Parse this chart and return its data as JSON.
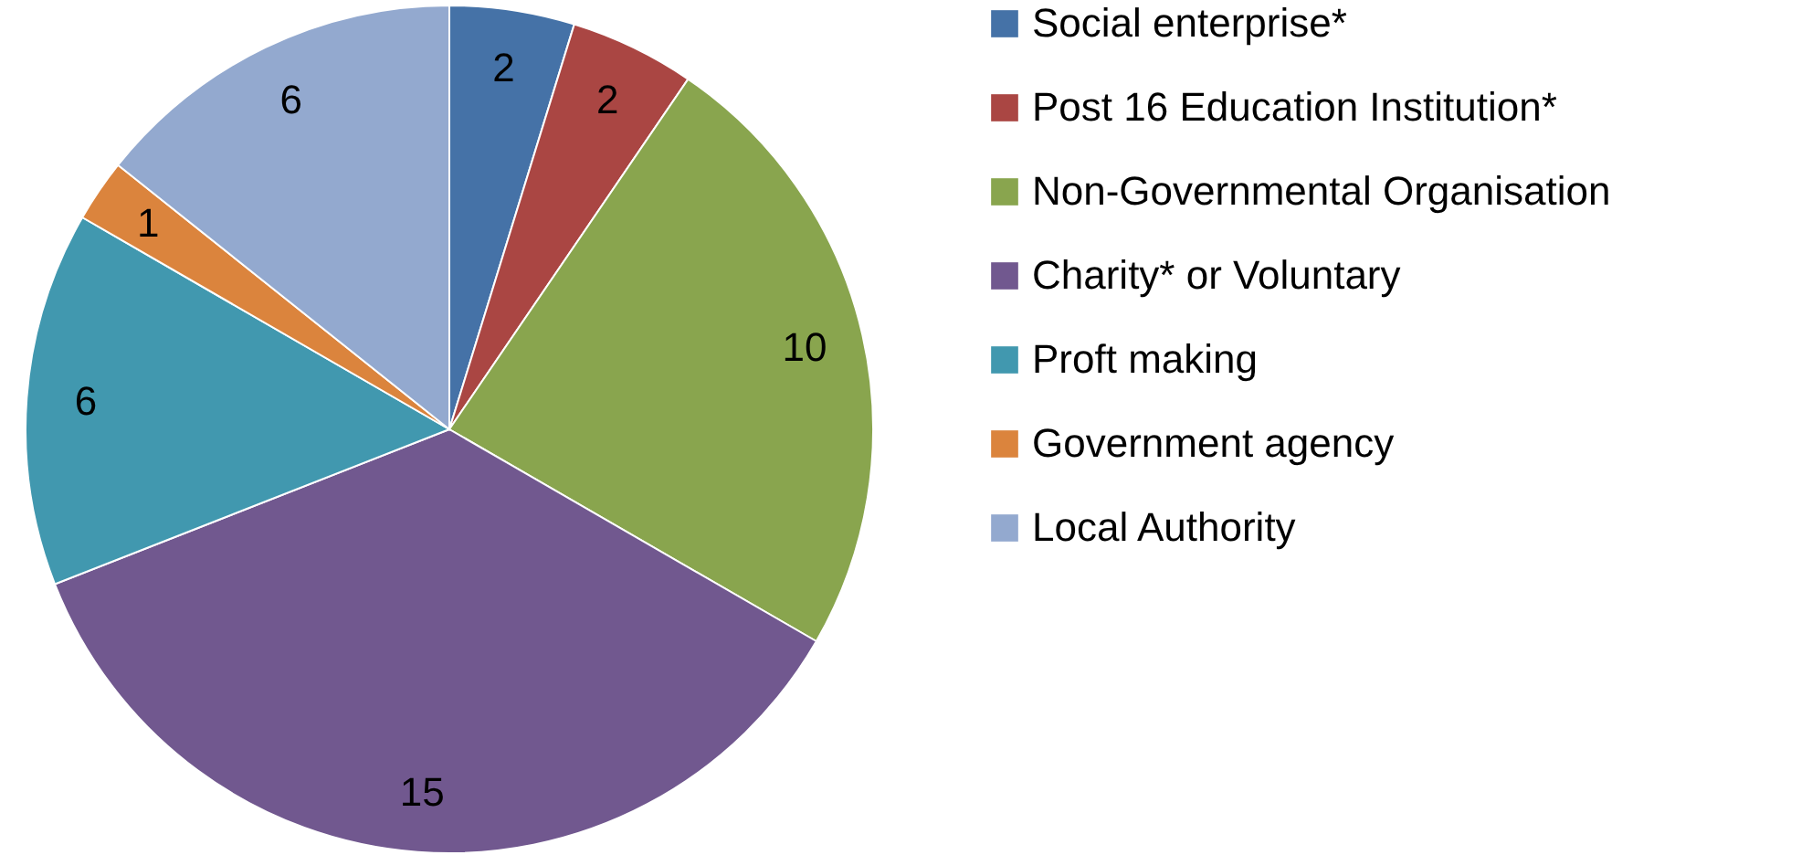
{
  "chart_data": {
    "type": "pie",
    "categories": [
      "Social enterprise*",
      "Post 16 Education Institution*",
      "Non-Governmental Organisation",
      "Charity* or Voluntary",
      "Proft making",
      "Government agency",
      "Local Authority"
    ],
    "values": [
      2,
      2,
      10,
      15,
      6,
      1,
      6
    ],
    "colors": [
      "#4572a7",
      "#aa4643",
      "#89a54e",
      "#71588f",
      "#4198af",
      "#db843d",
      "#93a9cf"
    ],
    "data_labels": true,
    "legend": "right"
  }
}
